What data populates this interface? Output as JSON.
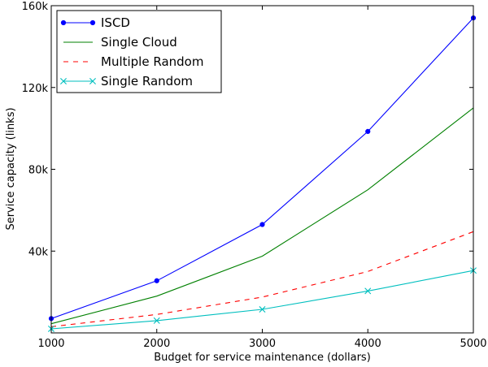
{
  "chart_data": {
    "type": "line",
    "title": "",
    "xlabel": "Budget for service maintenance (dollars)",
    "ylabel": "Service capacity (links)",
    "xlim": [
      1000,
      5000
    ],
    "ylim": [
      0,
      160000
    ],
    "x": [
      1000,
      2000,
      3000,
      4000,
      5000
    ],
    "xticks": [
      1000,
      2000,
      3000,
      4000,
      5000
    ],
    "xtick_labels": [
      "1000",
      "2000",
      "3000",
      "4000",
      "5000"
    ],
    "yticks": [
      40000,
      80000,
      120000,
      160000
    ],
    "ytick_labels": [
      "40k",
      "80k",
      "120k",
      "160k"
    ],
    "grid": false,
    "legend_position": "top-left",
    "series": [
      {
        "name": "ISCD",
        "values": [
          7000,
          25500,
          53000,
          98500,
          154000
        ],
        "color": "#0000ff",
        "dash": "solid",
        "marker": "dot"
      },
      {
        "name": "Single Cloud",
        "values": [
          4500,
          18000,
          37500,
          70000,
          110000
        ],
        "color": "#008000",
        "dash": "solid",
        "marker": "none"
      },
      {
        "name": "Multiple Random",
        "values": [
          3000,
          9000,
          17500,
          30000,
          49500
        ],
        "color": "#ff0000",
        "dash": "dashed",
        "marker": "none"
      },
      {
        "name": "Single Random",
        "values": [
          2000,
          6000,
          11500,
          20500,
          30500
        ],
        "color": "#00bfbf",
        "dash": "solid",
        "marker": "x"
      }
    ]
  }
}
